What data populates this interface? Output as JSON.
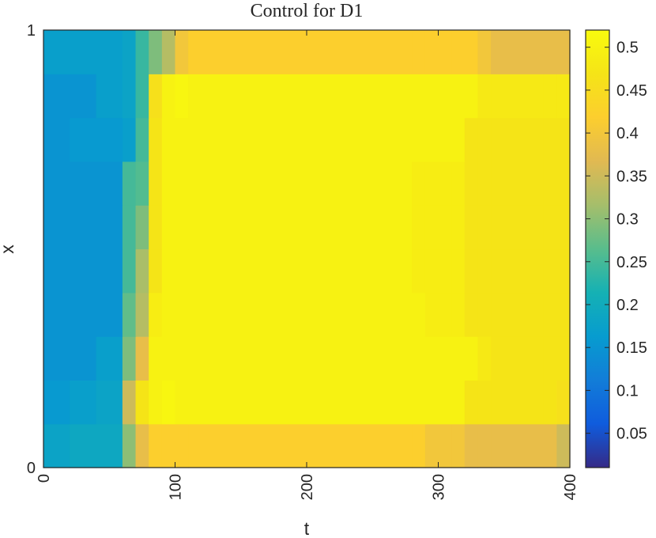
{
  "chart_data": {
    "type": "heatmap",
    "title": "Control for D1",
    "xlabel": "t",
    "ylabel": "x",
    "xlim": [
      0,
      400
    ],
    "ylim": [
      0,
      1
    ],
    "x_ticks": [
      "0",
      "100",
      "200",
      "300",
      "400"
    ],
    "y_ticks": [
      "0",
      "1"
    ],
    "colorbar": {
      "range": [
        0.01,
        0.52
      ],
      "ticks": [
        "0.05",
        "0.1",
        "0.15",
        "0.2",
        "0.25",
        "0.3",
        "0.35",
        "0.4",
        "0.45",
        "0.5"
      ],
      "colormap": "parula"
    },
    "x_bin_edges": [
      0,
      20,
      40,
      60,
      70,
      80,
      90,
      100,
      110,
      280,
      290,
      300,
      310,
      320,
      330,
      340,
      380,
      390,
      400
    ],
    "y_bin_edges": [
      0,
      0.1,
      0.2,
      0.3,
      0.4,
      0.5,
      0.6,
      0.7,
      0.8,
      0.9,
      1.0
    ],
    "values": [
      [
        0.18,
        0.19,
        0.19,
        0.3,
        0.38,
        0.42,
        0.42,
        0.42,
        0.42,
        0.42,
        0.4,
        0.4,
        0.4,
        0.38,
        0.38,
        0.38,
        0.38,
        0.35
      ],
      [
        0.16,
        0.17,
        0.18,
        0.35,
        0.47,
        0.5,
        0.51,
        0.5,
        0.5,
        0.5,
        0.5,
        0.5,
        0.5,
        0.47,
        0.47,
        0.47,
        0.47,
        0.46
      ],
      [
        0.15,
        0.15,
        0.17,
        0.29,
        0.38,
        0.5,
        0.5,
        0.5,
        0.5,
        0.5,
        0.5,
        0.5,
        0.5,
        0.5,
        0.48,
        0.47,
        0.47,
        0.47
      ],
      [
        0.15,
        0.15,
        0.15,
        0.27,
        0.33,
        0.49,
        0.5,
        0.5,
        0.5,
        0.5,
        0.49,
        0.49,
        0.49,
        0.47,
        0.47,
        0.47,
        0.47,
        0.47
      ],
      [
        0.15,
        0.15,
        0.15,
        0.25,
        0.32,
        0.47,
        0.5,
        0.5,
        0.5,
        0.49,
        0.49,
        0.49,
        0.49,
        0.47,
        0.47,
        0.47,
        0.47,
        0.47
      ],
      [
        0.15,
        0.15,
        0.15,
        0.25,
        0.29,
        0.47,
        0.5,
        0.5,
        0.5,
        0.49,
        0.49,
        0.49,
        0.49,
        0.47,
        0.47,
        0.47,
        0.47,
        0.47
      ],
      [
        0.15,
        0.15,
        0.15,
        0.25,
        0.26,
        0.47,
        0.5,
        0.5,
        0.5,
        0.49,
        0.49,
        0.49,
        0.49,
        0.47,
        0.47,
        0.47,
        0.47,
        0.47
      ],
      [
        0.15,
        0.16,
        0.16,
        0.17,
        0.25,
        0.47,
        0.5,
        0.5,
        0.5,
        0.5,
        0.5,
        0.5,
        0.5,
        0.47,
        0.47,
        0.47,
        0.47,
        0.47
      ],
      [
        0.15,
        0.15,
        0.17,
        0.18,
        0.24,
        0.46,
        0.5,
        0.51,
        0.5,
        0.5,
        0.5,
        0.5,
        0.5,
        0.5,
        0.48,
        0.48,
        0.48,
        0.48
      ],
      [
        0.17,
        0.17,
        0.17,
        0.18,
        0.24,
        0.29,
        0.33,
        0.4,
        0.42,
        0.42,
        0.42,
        0.42,
        0.42,
        0.42,
        0.4,
        0.38,
        0.38,
        0.38
      ]
    ]
  }
}
